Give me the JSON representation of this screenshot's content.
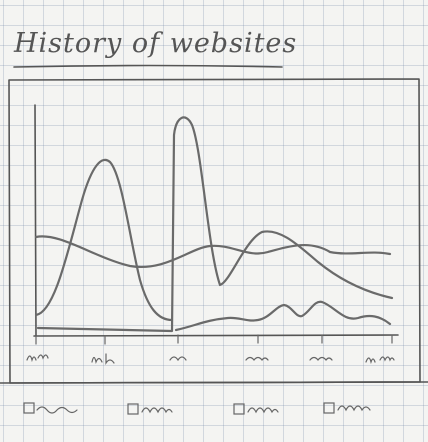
{
  "header": {
    "title": "History of websites"
  }
}
